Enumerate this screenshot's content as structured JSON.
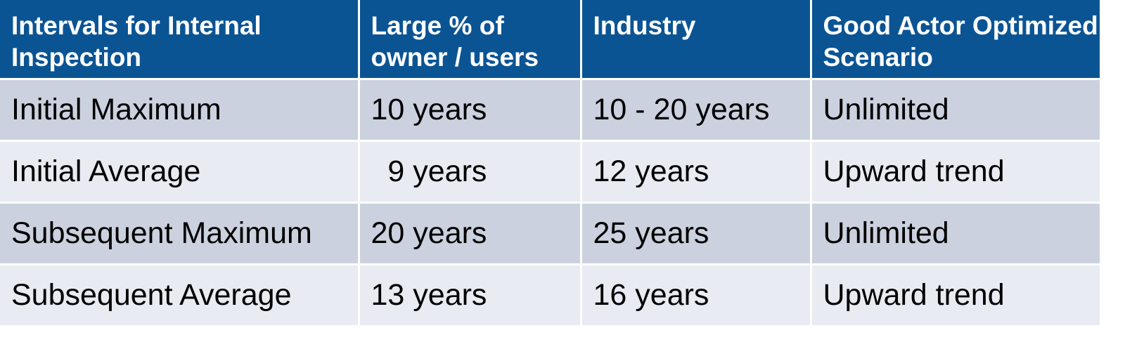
{
  "table": {
    "headers": [
      "Intervals for Internal Inspection",
      "Large % of owner / users",
      "Industry",
      "Good Actor Optimized Scenario"
    ],
    "rows": [
      [
        "Initial Maximum",
        "10 years",
        "10 - 20 years",
        "Unlimited"
      ],
      [
        "Initial Average",
        "  9 years",
        "12 years",
        "Upward trend"
      ],
      [
        "Subsequent Maximum",
        "20 years",
        "25 years",
        "Unlimited"
      ],
      [
        "Subsequent Average",
        "13 years",
        "16 years",
        "Upward trend"
      ]
    ]
  },
  "colors": {
    "header_bg": "#0b5494",
    "row_odd_bg": "#cbd1de",
    "row_even_bg": "#e8ebf1"
  }
}
